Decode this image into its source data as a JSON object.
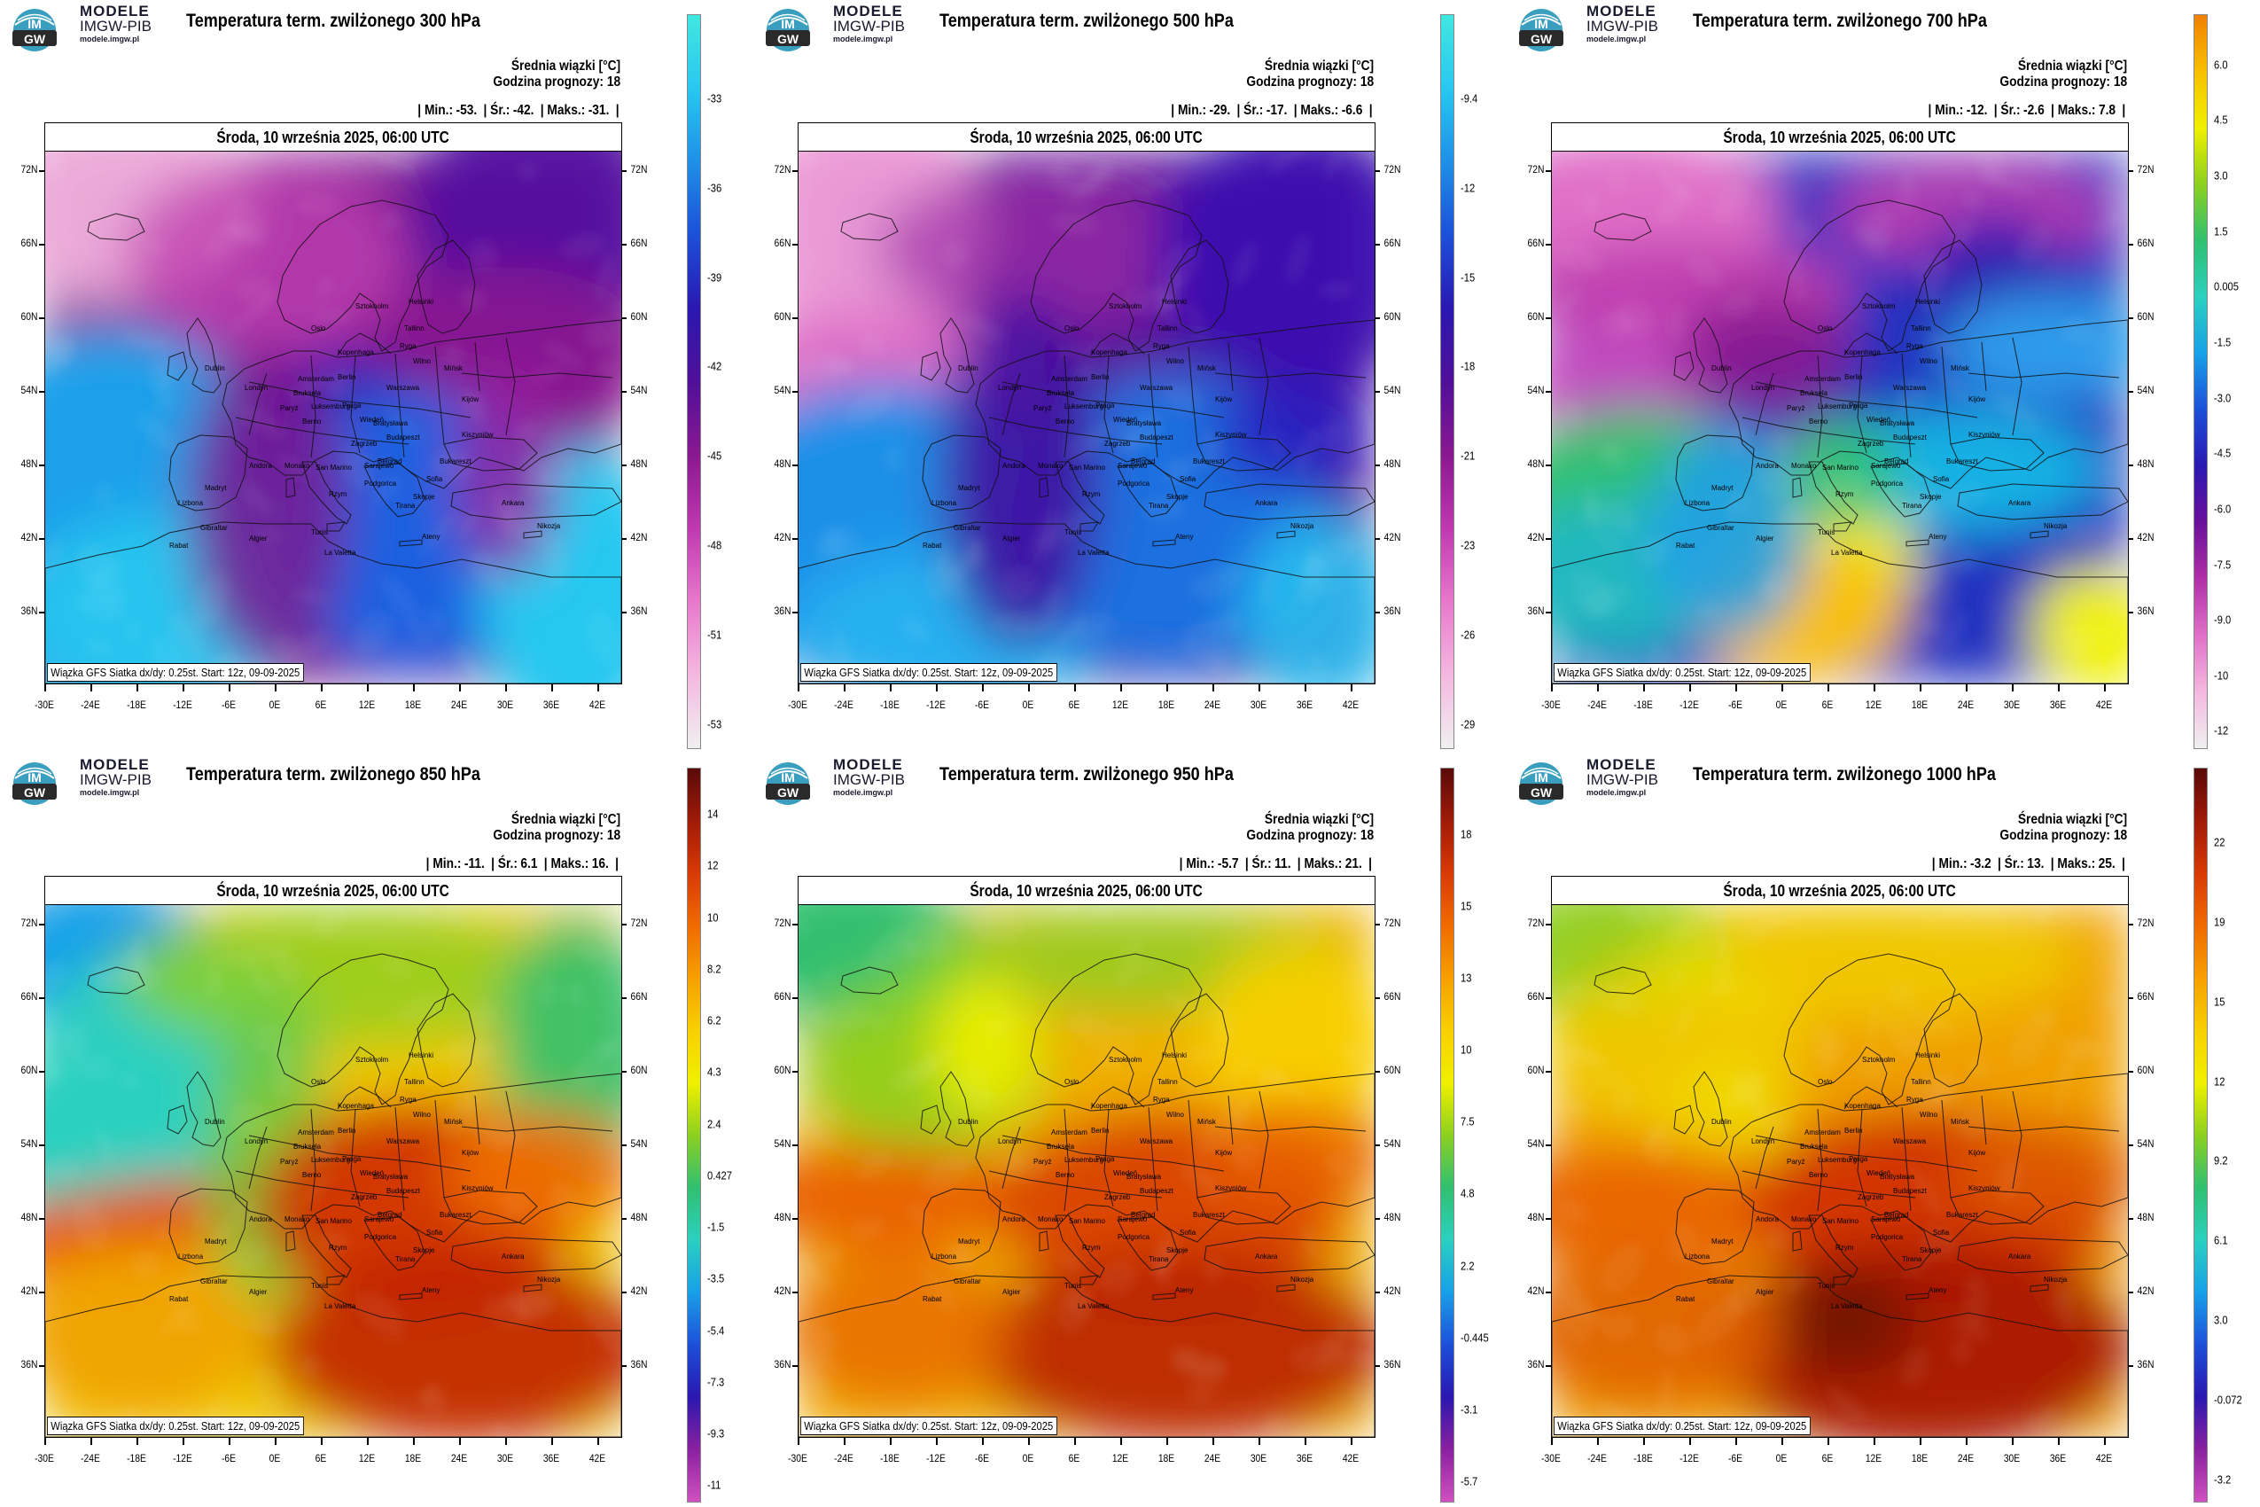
{
  "brand": {
    "line1": "MODELE",
    "line2": "IMGW-PIB",
    "url": "modele.imgw.pl",
    "logo_text_top": "IM",
    "logo_text_bottom": "GW"
  },
  "common": {
    "date": "Środa, 10 września 2025, 06:00 UTC",
    "mean_label": "Średnia wiązki [°C]",
    "hour_label": "Godzina prognozy: 18",
    "min_label": "| Min.:",
    "mean_short": "| Śr.:",
    "max_label": "| Maks.:",
    "end_bar": "|",
    "footnote": "Wiązka GFS Siatka dx/dy: 0.25st. Start: 12z, 09-09-2025",
    "lat_labels": [
      "72N",
      "66N",
      "60N",
      "54N",
      "48N",
      "42N",
      "36N"
    ],
    "lon_labels": [
      "-30E",
      "-24E",
      "-18E",
      "-12E",
      "-6E",
      "0E",
      "6E",
      "12E",
      "18E",
      "24E",
      "30E",
      "36E",
      "42E"
    ],
    "cities": [
      "Oslo",
      "Sztokholm",
      "Helsinki",
      "Tallinn",
      "Ryga",
      "Wilno",
      "Mińsk",
      "Kopenhaga",
      "Berlin",
      "Amsterdam",
      "Bruksela",
      "Londyn",
      "Dublin",
      "Paryż",
      "Luksemburg",
      "Warszawa",
      "Praga",
      "Wiedeń",
      "Bratysława",
      "Budapeszt",
      "Kijów",
      "Kiszyniów",
      "Belgrad",
      "Bukareszt",
      "Sofia",
      "Skopje",
      "Tirana",
      "Ateny",
      "Ankara",
      "Rzym",
      "Berno",
      "Zagrzeb",
      "Sarajewo",
      "Podgorica",
      "San Marino",
      "Monako",
      "Andora",
      "Madryt",
      "Lizbona",
      "Gibraltar",
      "Rabat",
      "Algier",
      "Tunis",
      "La Valetta",
      "Nikozja"
    ]
  },
  "panels": [
    {
      "title": "Temperatura term. zwilżonego 300 hPa",
      "min": "-53.",
      "mean": "-42.",
      "max": "-31.",
      "colorbar_labels": [
        "-33",
        "-36",
        "-39",
        "-42",
        "-45",
        "-48",
        "-51",
        "-53"
      ],
      "palette": "cold_upper"
    },
    {
      "title": "Temperatura term. zwilżonego 500 hPa",
      "min": "-29.",
      "mean": "-17.",
      "max": "-6.6",
      "colorbar_labels": [
        "-9.4",
        "-12",
        "-15",
        "-18",
        "-21",
        "-23",
        "-26",
        "-29"
      ],
      "palette": "cold_mid"
    },
    {
      "title": "Temperatura term. zwilżonego 700 hPa",
      "min": "-12.",
      "mean": "-2.6",
      "max": "7.8",
      "colorbar_labels": [
        "6.0",
        "4.5",
        "3.0",
        "1.5",
        "0.005",
        "-1.5",
        "-3.0",
        "-4.5",
        "-6.0",
        "-7.5",
        "-9.0",
        "-10",
        "-12"
      ],
      "palette": "mixed"
    },
    {
      "title": "Temperatura term. zwilżonego 850 hPa",
      "min": "-11.",
      "mean": "6.1",
      "max": "16.",
      "colorbar_labels": [
        "14",
        "12",
        "10",
        "8.2",
        "6.2",
        "4.3",
        "2.4",
        "0.427",
        "-1.5",
        "-3.5",
        "-5.4",
        "-7.3",
        "-9.3",
        "-11"
      ],
      "palette": "warm_850"
    },
    {
      "title": "Temperatura term. zwilżonego 950 hPa",
      "min": "-5.7",
      "mean": "11.",
      "max": "21.",
      "colorbar_labels": [
        "18",
        "15",
        "13",
        "10",
        "7.5",
        "4.8",
        "2.2",
        "-0.445",
        "-3.1",
        "-5.7"
      ],
      "palette": "warm_950"
    },
    {
      "title": "Temperatura term. zwilżonego 1000 hPa",
      "min": "-3.2",
      "mean": "13.",
      "max": "25.",
      "colorbar_labels": [
        "22",
        "19",
        "15",
        "12",
        "9.2",
        "6.1",
        "3.0",
        "-0.072",
        "-3.2"
      ],
      "palette": "warm_1000"
    }
  ],
  "colors": {
    "cold_upper": [
      "#6a0f8a",
      "#3a0fa0",
      "#1e2fd0",
      "#1c7de6",
      "#1ec0f0",
      "#26e8e8"
    ],
    "pink": [
      "#f0a0d8",
      "#e070c8",
      "#c040b0",
      "#90208f"
    ],
    "warm": [
      "#0a3ee0",
      "#18a0e8",
      "#2bd0c0",
      "#30c070",
      "#8cd020",
      "#f0f000",
      "#f8c000",
      "#f09000",
      "#e85000",
      "#c02000",
      "#6a1000"
    ]
  }
}
